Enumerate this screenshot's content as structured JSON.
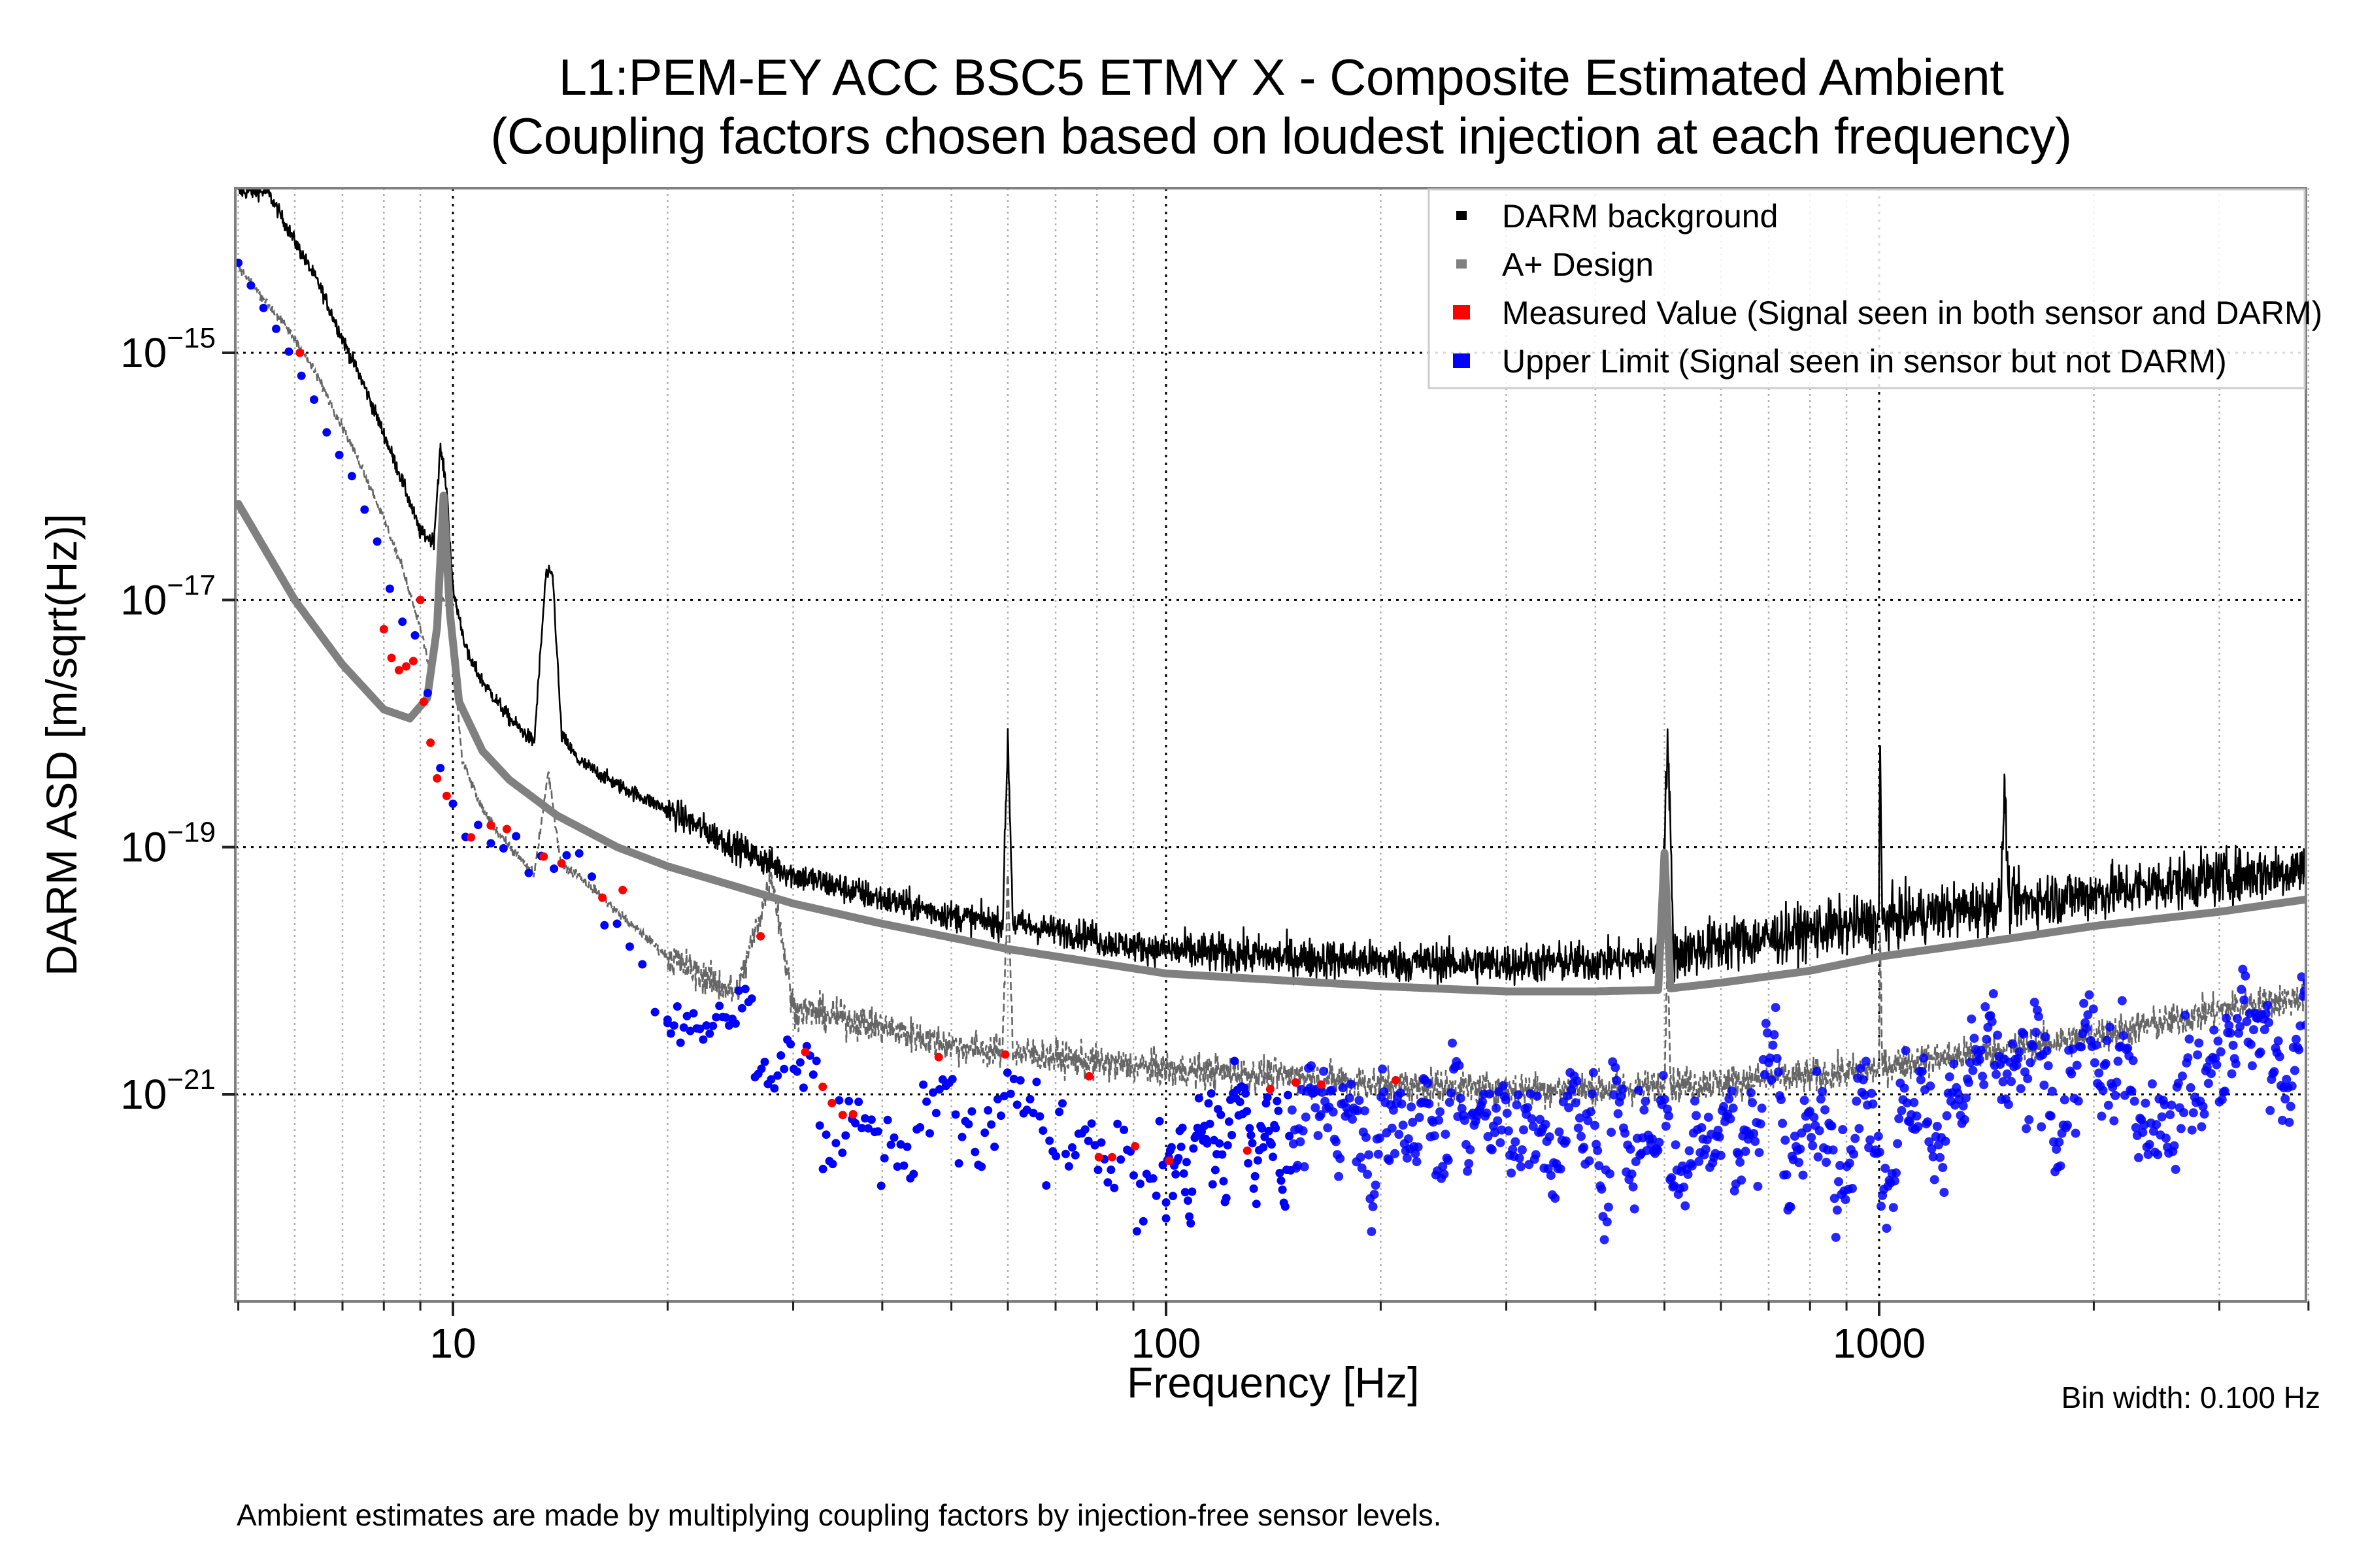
{
  "title": {
    "line1": "L1:PEM-EY ACC BSC5 ETMY X - Composite Estimated Ambient",
    "line2": "(Coupling factors chosen based on loudest injection at each frequency)"
  },
  "footnote": "Ambient estimates are made by multiplying coupling factors by injection-free sensor levels.",
  "bin_width_note": "Bin width: 0.100 Hz",
  "colors": {
    "darm": "#000000",
    "aplus": "#808080",
    "ambient": "#666666",
    "measured": "#ff0000",
    "upper_limit": "#0000ff",
    "grid_major": "#000000",
    "grid_minor": "#b0b0b0",
    "frame": "#808080"
  },
  "chart_data": {
    "type": "line",
    "title": "L1:PEM-EY ACC BSC5 ETMY X - Composite Estimated Ambient (Coupling factors chosen based on loudest injection at each frequency)",
    "xlabel": "Frequency [Hz]",
    "ylabel": "DARM ASD [m/sqrt(Hz)]",
    "xscale": "log",
    "yscale": "log",
    "xlim": [
      5,
      4000
    ],
    "ylim": [
      2.1e-23,
      2.1e-14
    ],
    "grid": true,
    "legend_position": "top-right",
    "x_ticks": [
      {
        "value": 10,
        "label": "10"
      },
      {
        "value": 100,
        "label": "100"
      },
      {
        "value": 1000,
        "label": "1000"
      }
    ],
    "y_ticks": [
      {
        "value": 1e-15,
        "base": "10",
        "exp": "−15"
      },
      {
        "value": 1e-17,
        "base": "10",
        "exp": "−17"
      },
      {
        "value": 1e-19,
        "base": "10",
        "exp": "−19"
      },
      {
        "value": 1e-21,
        "base": "10",
        "exp": "−21"
      }
    ],
    "legend": [
      {
        "label": "DARM background",
        "color": "#000000",
        "marker": "small-square"
      },
      {
        "label": "A+ Design",
        "color": "#808080",
        "marker": "small-square"
      },
      {
        "label": "Measured Value (Signal seen in both sensor and DARM)",
        "color": "#ff0000",
        "marker": "square"
      },
      {
        "label": "Upper Limit (Signal seen in sensor but not DARM)",
        "color": "#0000ff",
        "marker": "square"
      }
    ],
    "series": [
      {
        "name": "DARM background",
        "style": "thin-line",
        "x": [
          5.5,
          6,
          6.5,
          7,
          7.5,
          8,
          8.5,
          9,
          9.4,
          9.6,
          9.8,
          10.0,
          10.5,
          11,
          12,
          13,
          13.5,
          13.8,
          14.2,
          15,
          17,
          20,
          25,
          30,
          40,
          50,
          59,
          60,
          61,
          70,
          80,
          100,
          150,
          200,
          300,
          400,
          495,
          505,
          515,
          600,
          700,
          800,
          999,
          1003,
          1010,
          1200,
          1480,
          1500,
          1520,
          2000,
          2500,
          3000,
          3500,
          4000
        ],
        "y": [
          2e-14,
          8e-15,
          3.5e-15,
          1.3e-15,
          5.5e-16,
          2.2e-16,
          9e-17,
          3.5e-17,
          3e-17,
          1.7e-16,
          8e-17,
          1.2e-17,
          3.5e-18,
          2.2e-18,
          1.1e-18,
          7e-19,
          1.6e-17,
          1.6e-17,
          8e-19,
          5e-19,
          3.2e-19,
          2e-19,
          1e-19,
          6e-20,
          3.8e-20,
          2.8e-20,
          2.4e-20,
          8e-19,
          2.4e-20,
          2.1e-20,
          1.9e-20,
          1.6e-20,
          1.4e-20,
          1.3e-20,
          1.25e-20,
          1.3e-20,
          1.4e-20,
          9e-19,
          1.5e-20,
          1.8e-20,
          2e-20,
          2.3e-20,
          2.7e-20,
          6.6e-19,
          2.8e-20,
          3.2e-20,
          3.8e-20,
          3.5e-19,
          3.9e-20,
          4.6e-20,
          5.5e-20,
          6.2e-20,
          6.8e-20,
          7.5e-20
        ]
      },
      {
        "name": "A+ Design",
        "style": "thick-line",
        "x": [
          5,
          6,
          7,
          8,
          8.7,
          9.2,
          9.5,
          9.7,
          9.9,
          10.2,
          11,
          12,
          14,
          17,
          20,
          30,
          40,
          60,
          100,
          200,
          300,
          400,
          490,
          500,
          510,
          600,
          800,
          1000,
          1500,
          2000,
          3000,
          4000
        ],
        "y": [
          6e-17,
          1e-17,
          3e-18,
          1.3e-18,
          1.1e-18,
          1.6e-18,
          6e-18,
          7e-17,
          8e-18,
          1.5e-18,
          6e-19,
          3.5e-19,
          1.8e-19,
          1e-19,
          7e-20,
          3.5e-20,
          2.4e-20,
          1.5e-20,
          9.5e-21,
          7.5e-21,
          6.8e-21,
          6.8e-21,
          7e-21,
          9e-20,
          7.2e-21,
          8e-21,
          1e-20,
          1.3e-20,
          1.8e-20,
          2.3e-20,
          3e-20,
          3.8e-20
        ]
      },
      {
        "name": "Composite ambient estimate",
        "style": "dashed-line",
        "x": [
          5,
          5.5,
          6,
          6.5,
          7,
          7.5,
          8,
          8.5,
          9,
          9.3,
          9.6,
          9.9,
          10.3,
          11,
          12,
          13,
          13.6,
          14.2,
          15,
          17,
          20,
          25,
          28,
          30,
          40,
          50,
          59,
          60,
          61,
          70,
          80,
          100,
          150,
          200,
          300,
          400,
          500,
          505,
          510,
          600,
          800,
          1000,
          1003,
          1010,
          1500,
          2000,
          2500,
          3000,
          3500,
          4000
        ],
        "y": [
          5e-15,
          2.5e-15,
          1.3e-15,
          6e-16,
          2.5e-16,
          1.1e-16,
          4.5e-17,
          1.8e-17,
          6e-18,
          2.5e-18,
          1.1e-17,
          8e-18,
          5e-19,
          2e-19,
          1e-19,
          6e-20,
          4e-19,
          7e-20,
          6e-20,
          3e-20,
          1.3e-20,
          6.5e-21,
          6e-20,
          5e-21,
          3.5e-21,
          2.5e-21,
          2.2e-21,
          6e-20,
          2.2e-21,
          2e-21,
          1.8e-21,
          1.6e-21,
          1.4e-21,
          1.2e-21,
          1.1e-21,
          1.1e-21,
          1.15e-21,
          2e-20,
          1.2e-21,
          1.25e-21,
          1.4e-21,
          1.6e-21,
          2e-20,
          1.7e-21,
          2.3e-21,
          3e-21,
          3.8e-21,
          4.8e-21,
          5.5e-21,
          6.2e-21
        ]
      },
      {
        "name": "Measured Value (Signal seen in both sensor and DARM)",
        "style": "markers",
        "x": [
          6.1,
          8.0,
          8.2,
          8.4,
          8.6,
          8.8,
          9.0,
          9.1,
          9.3,
          9.5,
          9.8,
          10.6,
          11.3,
          11.9,
          13.4,
          14.2,
          16.2,
          17.3,
          27.0,
          31.2,
          33.0,
          34.0,
          35.2,
          36.4,
          48.0,
          59.5,
          78.0,
          80.5,
          84.0,
          90.5,
          101,
          130,
          140,
          152,
          165,
          210
        ],
        "y": [
          1e-15,
          5.8e-18,
          3.4e-18,
          2.7e-18,
          2.9e-18,
          3.2e-18,
          1e-17,
          1.5e-18,
          7e-19,
          3.6e-19,
          2.6e-19,
          1.2e-19,
          1.5e-19,
          1.4e-19,
          8.4e-20,
          7.4e-20,
          3.9e-20,
          4.5e-20,
          1.9e-20,
          2.2e-21,
          1.15e-21,
          8.5e-22,
          6.8e-22,
          6.9e-22,
          2e-21,
          2.1e-21,
          1.4e-21,
          3.1e-22,
          3.1e-22,
          3.8e-22,
          2.9e-22,
          3.5e-22,
          1.1e-21,
          1.25e-21,
          1.2e-21,
          1.3e-21
        ]
      },
      {
        "name": "Upper Limit (Signal seen in sensor but not DARM)",
        "style": "markers",
        "envelope": {
          "x": [
            5,
            6,
            7,
            8,
            9,
            9.6,
            10.2,
            11,
            12,
            14,
            16,
            18,
            20,
            23,
            26,
            30,
            35,
            40,
            45,
            50,
            60,
            70,
            80,
            90,
            100,
            110,
            130,
            150,
            180,
            200,
            250,
            300,
            350,
            400,
            450,
            500,
            550,
            600,
            700,
            800,
            900,
            1000,
            1200,
            1400,
            1600,
            1800,
            2000,
            2500,
            3000,
            3500,
            4000
          ],
          "center": [
            5e-15,
            9e-16,
            2e-16,
            3e-17,
            8e-18,
            1e-18,
            1.5e-19,
            1.1e-19,
            9e-20,
            6e-20,
            3.5e-20,
            1.5e-20,
            6e-21,
            3e-21,
            3e-21,
            2e-21,
            8e-22,
            5e-22,
            5e-22,
            6e-22,
            5e-22,
            4e-22,
            2.5e-22,
            2.2e-22,
            2.5e-22,
            4.5e-22,
            5e-22,
            6e-22,
            7e-22,
            8e-22,
            7e-22,
            6.5e-22,
            6e-22,
            5e-22,
            5.5e-22,
            6e-22,
            6e-22,
            5e-22,
            6e-22,
            4.5e-22,
            6e-22,
            8e-22,
            9e-22,
            1e-21,
            8e-22,
            1e-21,
            1.2e-21,
            1.6e-21,
            2.2e-21,
            3e-21,
            4e-21
          ],
          "spread_decades": [
            0.1,
            0.15,
            0.2,
            0.25,
            0.3,
            0.3,
            0.25,
            0.25,
            0.25,
            0.3,
            0.3,
            0.35,
            0.4,
            0.45,
            0.5,
            0.5,
            0.5,
            0.5,
            0.5,
            0.5,
            0.5,
            0.5,
            0.45,
            0.45,
            0.5,
            0.55,
            0.6,
            0.6,
            0.6,
            0.6,
            0.6,
            0.6,
            0.6,
            0.6,
            0.6,
            0.6,
            0.6,
            0.6,
            0.6,
            0.6,
            0.6,
            0.6,
            0.6,
            0.6,
            0.6,
            0.6,
            0.6,
            0.6,
            0.6,
            0.6,
            0.6
          ]
        }
      }
    ]
  }
}
